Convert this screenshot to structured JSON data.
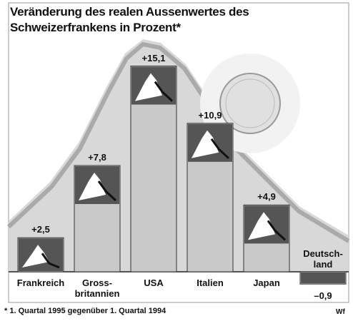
{
  "chart_data": {
    "type": "bar",
    "title": "Veränderung des realen Aussenwertes des Schweizerfrankens in Prozent*",
    "categories": [
      "Frankreich",
      "Gross-\nbritannien",
      "USA",
      "Italien",
      "Japan",
      "Deutsch-\nland"
    ],
    "values": [
      2.5,
      7.8,
      15.1,
      10.9,
      4.9,
      -0.9
    ],
    "value_labels": [
      "+2,5",
      "+7,8",
      "+15,1",
      "+10,9",
      "+4,9",
      "–0,9"
    ],
    "color": "#c9c9c9",
    "footnote": "* 1. Quartal 1995 gegenüber 1. Quartal 1994",
    "source": "Wf"
  }
}
